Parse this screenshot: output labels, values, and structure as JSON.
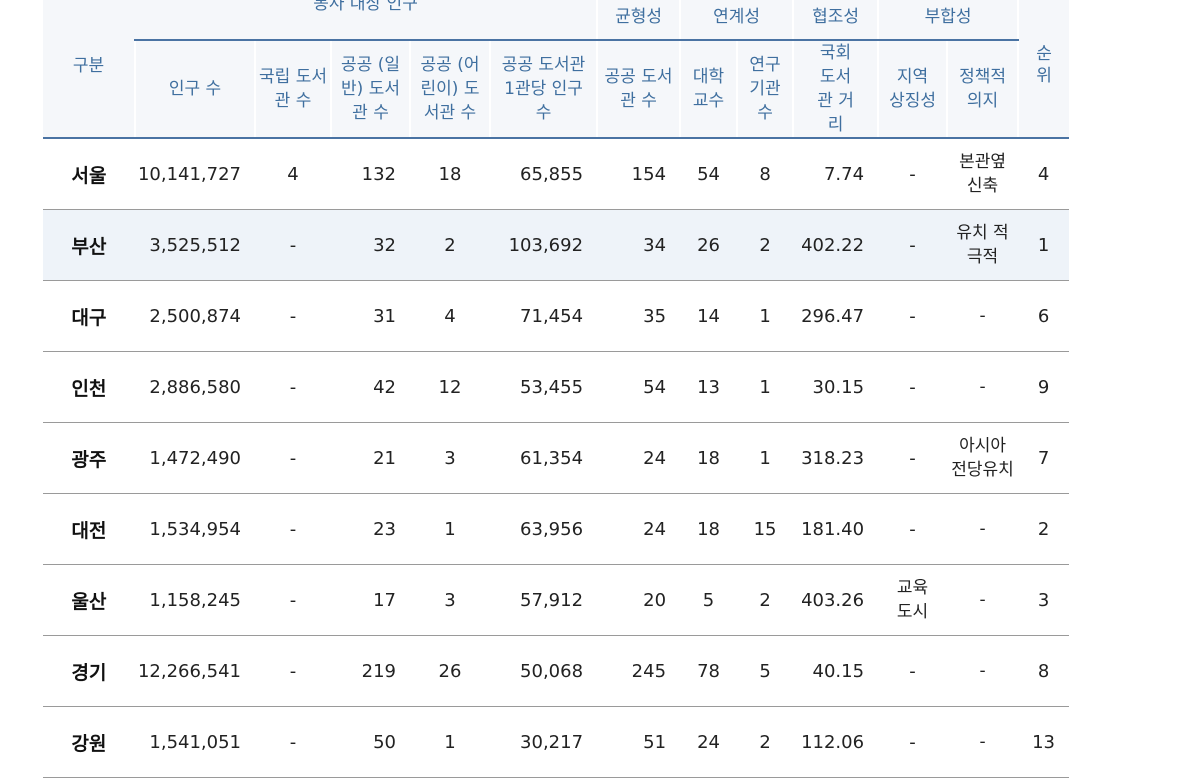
{
  "header": {
    "gubun": "구분",
    "group_population": "봉사 대상 인구",
    "group_balance": "균형성",
    "group_linkage": "연계성",
    "group_coop": "협조성",
    "group_fit": "부합성",
    "rank": "순위",
    "cols": {
      "population": "인구 수",
      "national": "국립 도서관 수",
      "public_general": "공공 (일반) 도서관 수",
      "public_child": "공공 (어린이) 도서관 수",
      "per_library": "공공 도서관 1관당 인구 수",
      "balance_public": "공공 도서관 수",
      "professors": "대학 교수",
      "research": "연구 기관 수",
      "distance": "국회 도서관 거리",
      "symbolic": "지역 상징성",
      "policy": "정책적 의지"
    }
  },
  "rows": [
    {
      "name": "서울",
      "population": "10,141,727",
      "national": "4",
      "general": "132",
      "child": "18",
      "per_lib": "65,855",
      "public": "154",
      "prof": "54",
      "research": "8",
      "distance": "7.74",
      "symbolic": "-",
      "policy": "본관옆 신축",
      "rank": "4"
    },
    {
      "name": "부산",
      "population": "3,525,512",
      "national": "-",
      "general": "32",
      "child": "2",
      "per_lib": "103,692",
      "public": "34",
      "prof": "26",
      "research": "2",
      "distance": "402.22",
      "symbolic": "-",
      "policy": "유치 적극적",
      "rank": "1"
    },
    {
      "name": "대구",
      "population": "2,500,874",
      "national": "-",
      "general": "31",
      "child": "4",
      "per_lib": "71,454",
      "public": "35",
      "prof": "14",
      "research": "1",
      "distance": "296.47",
      "symbolic": "-",
      "policy": "-",
      "rank": "6"
    },
    {
      "name": "인천",
      "population": "2,886,580",
      "national": "-",
      "general": "42",
      "child": "12",
      "per_lib": "53,455",
      "public": "54",
      "prof": "13",
      "research": "1",
      "distance": "30.15",
      "symbolic": "-",
      "policy": "-",
      "rank": "9"
    },
    {
      "name": "광주",
      "population": "1,472,490",
      "national": "-",
      "general": "21",
      "child": "3",
      "per_lib": "61,354",
      "public": "24",
      "prof": "18",
      "research": "1",
      "distance": "318.23",
      "symbolic": "-",
      "policy": "아시아 전당유치",
      "rank": "7"
    },
    {
      "name": "대전",
      "population": "1,534,954",
      "national": "-",
      "general": "23",
      "child": "1",
      "per_lib": "63,956",
      "public": "24",
      "prof": "18",
      "research": "15",
      "distance": "181.40",
      "symbolic": "-",
      "policy": "-",
      "rank": "2"
    },
    {
      "name": "울산",
      "population": "1,158,245",
      "national": "-",
      "general": "17",
      "child": "3",
      "per_lib": "57,912",
      "public": "20",
      "prof": "5",
      "research": "2",
      "distance": "403.26",
      "symbolic": "교육 도시",
      "policy": "-",
      "rank": "3"
    },
    {
      "name": "경기",
      "population": "12,266,541",
      "national": "-",
      "general": "219",
      "child": "26",
      "per_lib": "50,068",
      "public": "245",
      "prof": "78",
      "research": "5",
      "distance": "40.15",
      "symbolic": "-",
      "policy": "-",
      "rank": "8"
    },
    {
      "name": "강원",
      "population": "1,541,051",
      "national": "-",
      "general": "50",
      "child": "1",
      "per_lib": "30,217",
      "public": "51",
      "prof": "24",
      "research": "2",
      "distance": "112.06",
      "symbolic": "-",
      "policy": "-",
      "rank": "13"
    }
  ]
}
